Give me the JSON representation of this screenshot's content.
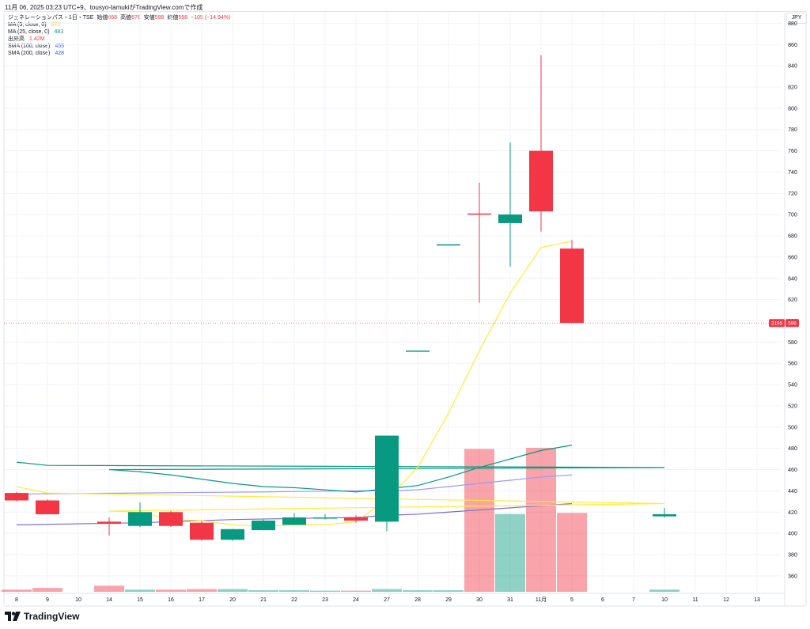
{
  "header": {
    "caption": "11月 06, 2025 03:23 UTC+9、tousyo-tamukiがTradingView.comで作成"
  },
  "legend": {
    "symbol_line": "ジェネレーションパス・1日・TSE",
    "ohlc": [
      {
        "label": "始値",
        "value": "668"
      },
      {
        "label": "高値",
        "value": "676"
      },
      {
        "label": "安値",
        "value": "598"
      },
      {
        "label": "終値",
        "value": "598"
      }
    ],
    "change": "−105 (−14.94%)",
    "indicators": [
      {
        "label": "MA (5, close, 0)",
        "value": "675",
        "color": "#ffeb3b"
      },
      {
        "label": "MA (25, close, 0)",
        "value": "483",
        "color": "#089981"
      },
      {
        "label": "出来高",
        "value": "1.42M",
        "color": "#f23645"
      },
      {
        "label": "SMA (100, close)",
        "value": "455",
        "color": "#2962ff"
      },
      {
        "label": "SMA (200, close)",
        "value": "428",
        "color": "#2962ff"
      }
    ]
  },
  "price_axis": {
    "currency": "JPY",
    "ticks": [
      "360",
      "380",
      "400",
      "420",
      "440",
      "460",
      "480",
      "500",
      "520",
      "540",
      "560",
      "580",
      "600",
      "620",
      "640",
      "660",
      "680",
      "700",
      "720",
      "740",
      "760",
      "780",
      "800",
      "820",
      "840",
      "860",
      "880"
    ],
    "last_price_label": "598",
    "volume_label": "3195"
  },
  "footer": {
    "brand": "TradingView"
  },
  "chart_data": {
    "type": "candlestick",
    "colors": {
      "up": "#089981",
      "down": "#f23645",
      "ma5": "#ffeb3b",
      "ma25": "#089981",
      "sma100": "#9a99ff",
      "sma200": "#7b6fd0"
    },
    "ylim": [
      345,
      890
    ],
    "x_labels": [
      "8",
      "9",
      "10",
      "14",
      "15",
      "16",
      "17",
      "20",
      "21",
      "22",
      "23",
      "24",
      "27",
      "28",
      "29",
      "30",
      "31",
      "11月",
      "5",
      "6",
      "7",
      "10",
      "11",
      "12",
      "13"
    ],
    "candles": [
      {
        "x": "8",
        "open": 438,
        "high": 439,
        "low": 430,
        "close": 431
      },
      {
        "x": "9",
        "open": 431,
        "high": 432,
        "low": 418,
        "close": 418
      },
      {
        "x": "10",
        "open": 416,
        "high": 424,
        "low": 415,
        "close": 418
      },
      {
        "x": "14",
        "open": 411,
        "high": 415,
        "low": 398,
        "close": 409
      },
      {
        "x": "15",
        "open": 407,
        "high": 429,
        "low": 406,
        "close": 420
      },
      {
        "x": "16",
        "open": 420,
        "high": 421,
        "low": 406,
        "close": 407
      },
      {
        "x": "17",
        "open": 410,
        "high": 412,
        "low": 393,
        "close": 394
      },
      {
        "x": "20",
        "open": 394,
        "high": 404,
        "low": 393,
        "close": 404
      },
      {
        "x": "21",
        "open": 403,
        "high": 413,
        "low": 403,
        "close": 412
      },
      {
        "x": "22",
        "open": 408,
        "high": 419,
        "low": 408,
        "close": 415
      },
      {
        "x": "23",
        "open": 415,
        "high": 418,
        "low": 413,
        "close": 415
      },
      {
        "x": "24",
        "open": 415,
        "high": 417,
        "low": 410,
        "close": 412
      },
      {
        "x": "27",
        "open": 411,
        "high": 492,
        "low": 402,
        "close": 492
      },
      {
        "x": "28",
        "open": 572,
        "high": 572,
        "low": 572,
        "close": 572
      },
      {
        "x": "29",
        "open": 672,
        "high": 672,
        "low": 672,
        "close": 672
      },
      {
        "x": "30",
        "open": 701,
        "high": 730,
        "low": 617,
        "close": 700
      },
      {
        "x": "31",
        "open": 692,
        "high": 768,
        "low": 651,
        "close": 700
      },
      {
        "x": "11月",
        "open": 760,
        "high": 850,
        "low": 684,
        "close": 703
      },
      {
        "x": "5",
        "open": 668,
        "high": 676,
        "low": 598,
        "close": 598
      }
    ],
    "volume": [
      {
        "x": "8",
        "value": 0.04,
        "dir": "down"
      },
      {
        "x": "9",
        "value": 0.07,
        "dir": "down"
      },
      {
        "x": "10",
        "value": 0.04,
        "dir": "up"
      },
      {
        "x": "14",
        "value": 0.11,
        "dir": "down"
      },
      {
        "x": "15",
        "value": 0.04,
        "dir": "up"
      },
      {
        "x": "16",
        "value": 0.04,
        "dir": "down"
      },
      {
        "x": "17",
        "value": 0.05,
        "dir": "down"
      },
      {
        "x": "20",
        "value": 0.05,
        "dir": "up"
      },
      {
        "x": "21",
        "value": 0.03,
        "dir": "up"
      },
      {
        "x": "22",
        "value": 0.03,
        "dir": "up"
      },
      {
        "x": "23",
        "value": 0.02,
        "dir": "up"
      },
      {
        "x": "24",
        "value": 0.02,
        "dir": "down"
      },
      {
        "x": "27",
        "value": 0.05,
        "dir": "up"
      },
      {
        "x": "28",
        "value": 0.03,
        "dir": "up"
      },
      {
        "x": "29",
        "value": 0.03,
        "dir": "up"
      },
      {
        "x": "30",
        "value": 2.57,
        "dir": "down"
      },
      {
        "x": "31",
        "value": 1.4,
        "dir": "up"
      },
      {
        "x": "11月",
        "value": 2.59,
        "dir": "down"
      },
      {
        "x": "5",
        "value": 1.42,
        "dir": "down"
      }
    ],
    "ma5": [
      {
        "x": "8",
        "y": 444
      },
      {
        "x": "9",
        "y": 438
      },
      {
        "x": "10",
        "y": 428
      },
      {
        "x": "14",
        "y": 421
      },
      {
        "x": "15",
        "y": 420
      },
      {
        "x": "16",
        "y": 413
      },
      {
        "x": "17",
        "y": 412
      },
      {
        "x": "20",
        "y": 408
      },
      {
        "x": "21",
        "y": 407
      },
      {
        "x": "22",
        "y": 408
      },
      {
        "x": "23",
        "y": 408
      },
      {
        "x": "24",
        "y": 411
      },
      {
        "x": "27",
        "y": 432
      },
      {
        "x": "28",
        "y": 462
      },
      {
        "x": "29",
        "y": 513
      },
      {
        "x": "30",
        "y": 572
      },
      {
        "x": "31",
        "y": 626
      },
      {
        "x": "11月",
        "y": 669
      },
      {
        "x": "5",
        "y": 675
      }
    ],
    "ma25": [
      {
        "x": "8",
        "y": 467
      },
      {
        "x": "9",
        "y": 464
      },
      {
        "x": "10",
        "y": 462
      },
      {
        "x": "14",
        "y": 460
      },
      {
        "x": "15",
        "y": 458
      },
      {
        "x": "16",
        "y": 455
      },
      {
        "x": "17",
        "y": 451
      },
      {
        "x": "20",
        "y": 447
      },
      {
        "x": "21",
        "y": 444
      },
      {
        "x": "22",
        "y": 443
      },
      {
        "x": "23",
        "y": 441
      },
      {
        "x": "24",
        "y": 439
      },
      {
        "x": "27",
        "y": 442
      },
      {
        "x": "28",
        "y": 445
      },
      {
        "x": "29",
        "y": 453
      },
      {
        "x": "30",
        "y": 462
      },
      {
        "x": "31",
        "y": 470
      },
      {
        "x": "11月",
        "y": 478
      },
      {
        "x": "5",
        "y": 483
      }
    ],
    "sma100": [
      {
        "x": "8",
        "y": 437
      },
      {
        "x": "15",
        "y": 438
      },
      {
        "x": "21",
        "y": 439
      },
      {
        "x": "24",
        "y": 440
      },
      {
        "x": "27",
        "y": 440
      },
      {
        "x": "28",
        "y": 441
      },
      {
        "x": "29",
        "y": 444
      },
      {
        "x": "30",
        "y": 447
      },
      {
        "x": "31",
        "y": 450
      },
      {
        "x": "11月",
        "y": 453
      },
      {
        "x": "5",
        "y": 455
      }
    ],
    "sma200": [
      {
        "x": "8",
        "y": 408
      },
      {
        "x": "15",
        "y": 410
      },
      {
        "x": "20",
        "y": 413
      },
      {
        "x": "24",
        "y": 415
      },
      {
        "x": "27",
        "y": 417
      },
      {
        "x": "28",
        "y": 418
      },
      {
        "x": "29",
        "y": 420
      },
      {
        "x": "30",
        "y": 422
      },
      {
        "x": "31",
        "y": 424
      },
      {
        "x": "11月",
        "y": 426
      },
      {
        "x": "5",
        "y": 428
      }
    ]
  }
}
